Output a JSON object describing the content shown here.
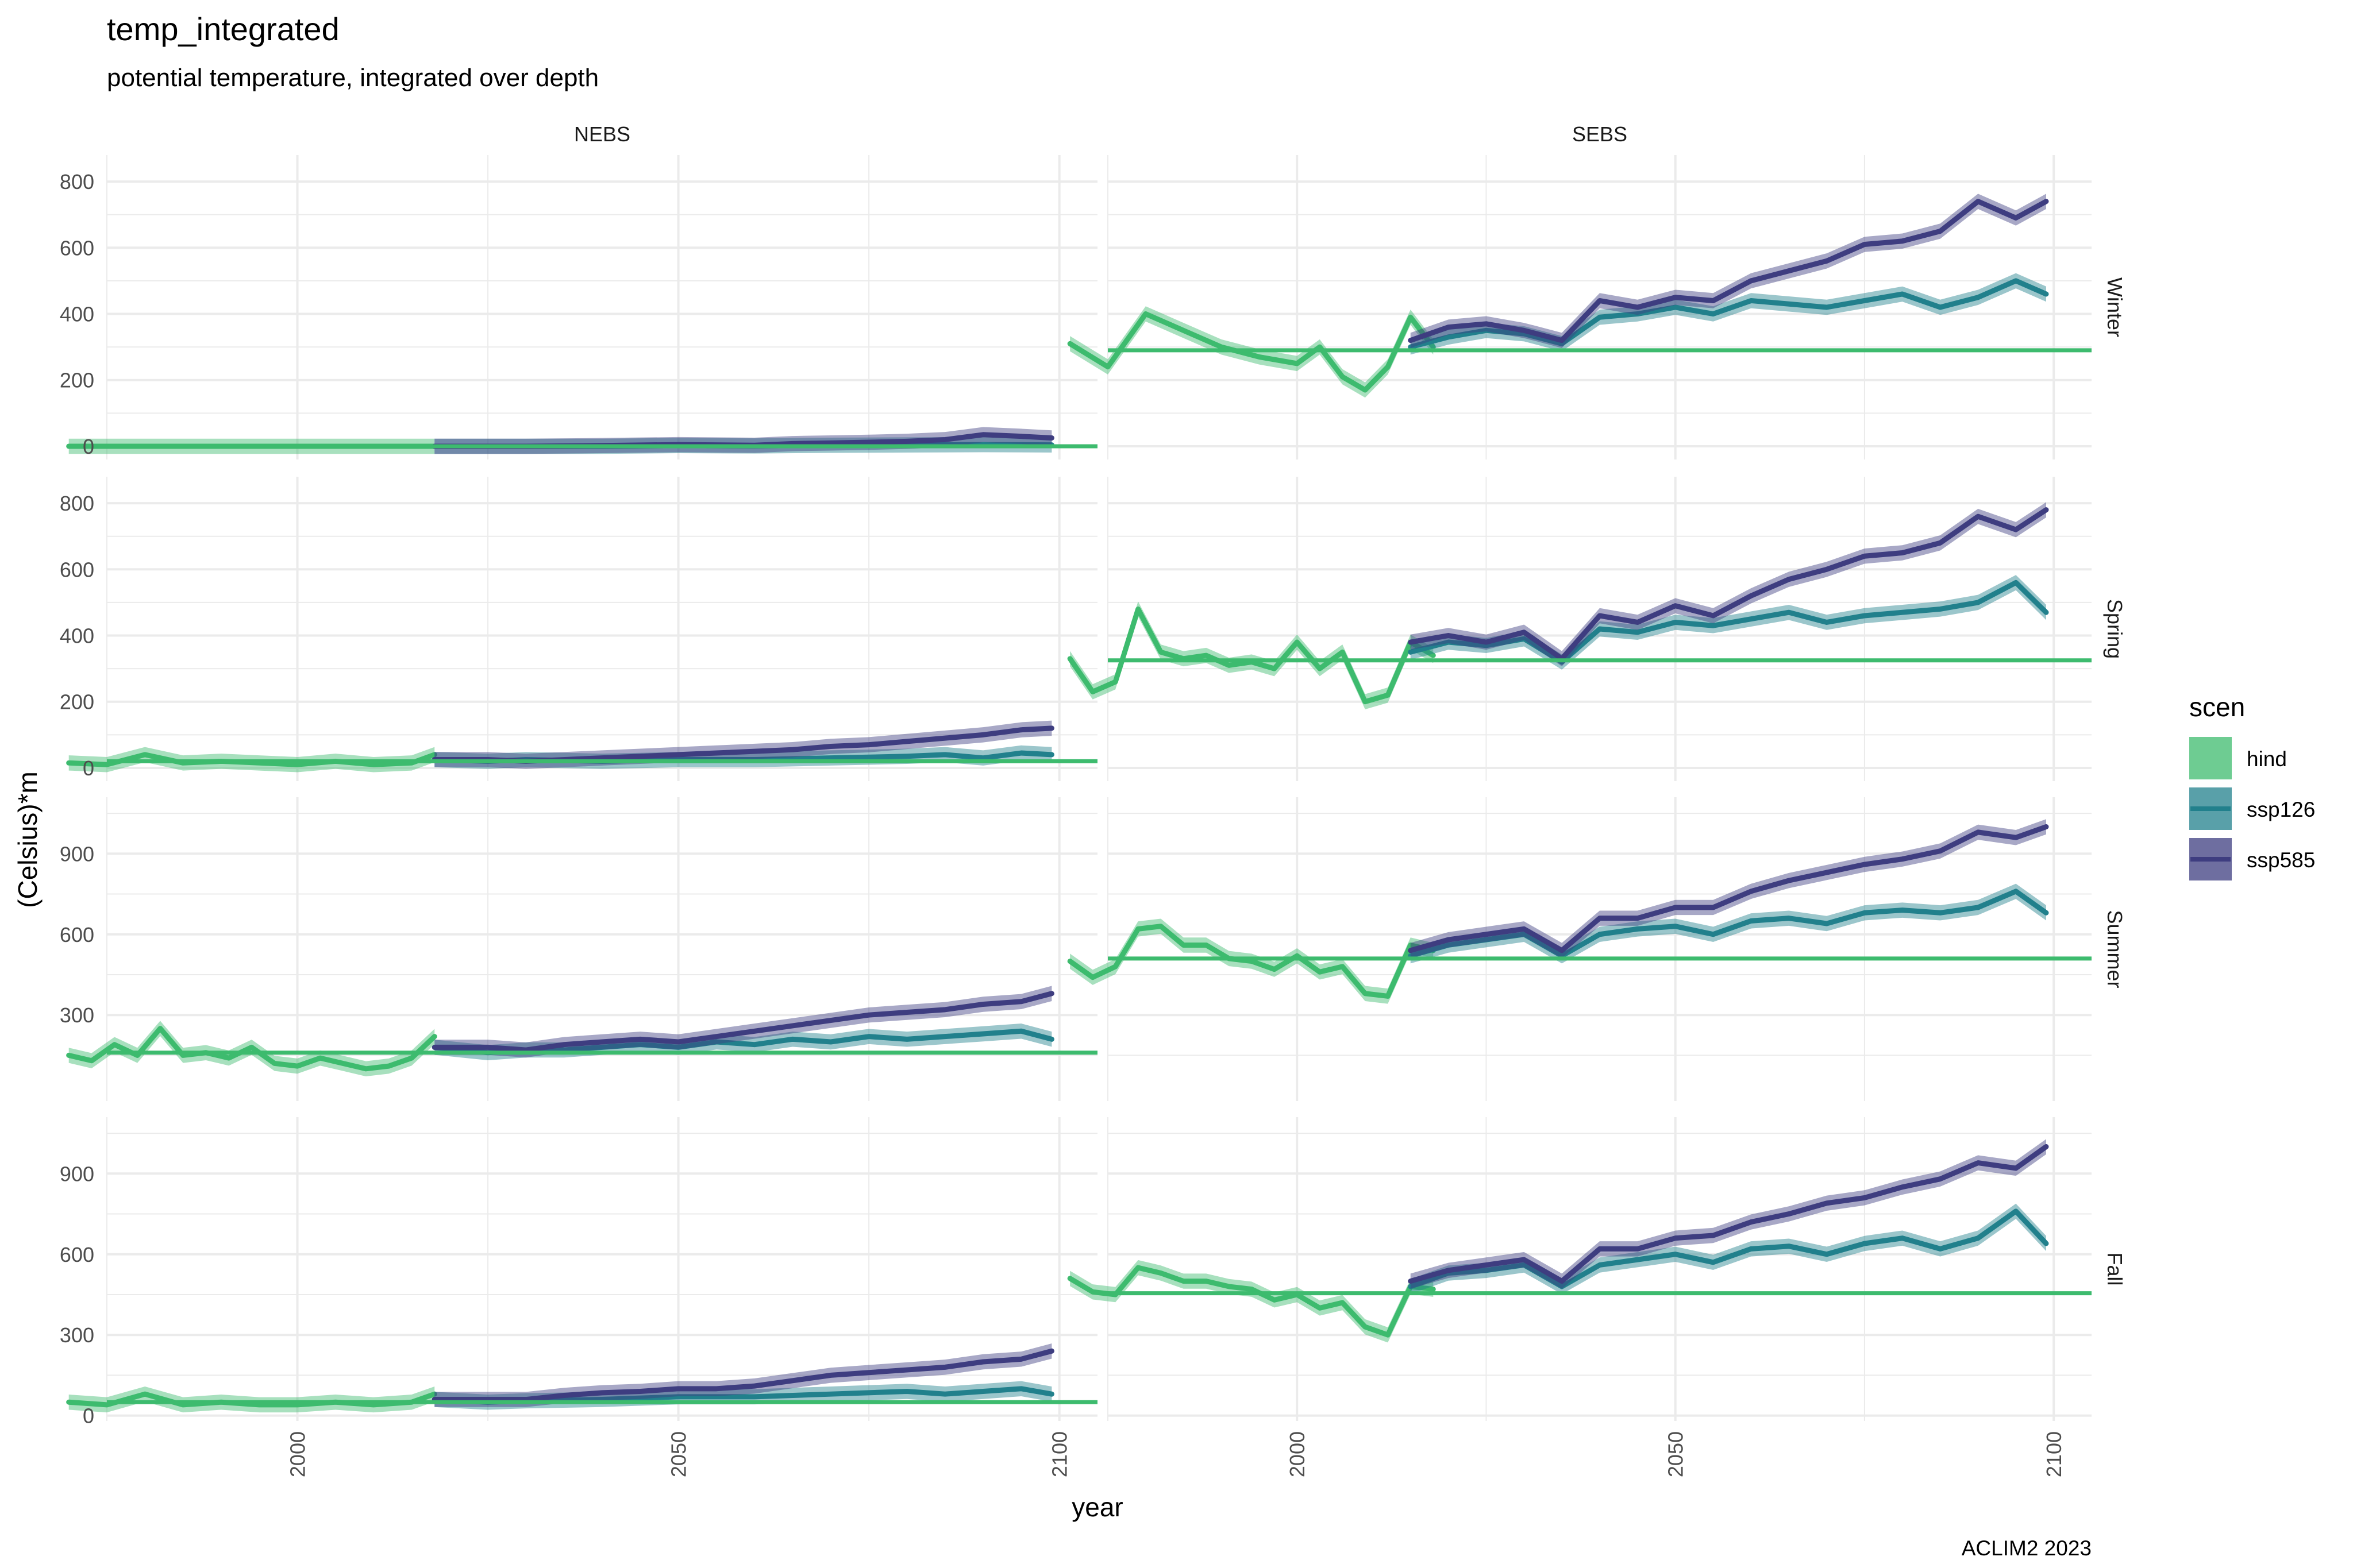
{
  "chart_data": {
    "type": "line",
    "title": "temp_integrated",
    "subtitle": "potential temperature, integrated over depth",
    "xlabel": "year",
    "ylabel": "(Celsius)*m",
    "caption": "ACLIM2 2023",
    "x_ticks": [
      "2000",
      "2050",
      "2100"
    ],
    "xlim": [
      1975,
      2105
    ],
    "columns": [
      "NEBS",
      "SEBS"
    ],
    "rows": [
      "Winter",
      "Spring",
      "Summer",
      "Fall"
    ],
    "legend": {
      "title": "scen",
      "position": "right",
      "entries": [
        "hind",
        "ssp126",
        "ssp585"
      ]
    },
    "colors": {
      "hind": "#3dbb6e",
      "ssp126": "#21808c",
      "ssp585": "#3e3d80",
      "grid": "#ebebeb"
    },
    "grid": true,
    "row_axes": [
      {
        "ylim": [
          -40,
          880
        ],
        "ticks": [
          0,
          200,
          400,
          600,
          800
        ],
        "tick_labels": [
          "0",
          "200",
          "400",
          "600",
          "800"
        ]
      },
      {
        "ylim": [
          -40,
          880
        ],
        "ticks": [
          0,
          200,
          400,
          600,
          800
        ],
        "tick_labels": [
          "0",
          "200",
          "400",
          "600",
          "800"
        ]
      },
      {
        "ylim": [
          -20,
          1110
        ],
        "ticks": [
          300,
          600,
          900
        ],
        "tick_labels": [
          "300",
          "600",
          "900"
        ]
      },
      {
        "ylim": [
          -20,
          1110
        ],
        "ticks": [
          0,
          300,
          600,
          900
        ],
        "tick_labels": [
          "0",
          "300",
          "600",
          "900"
        ]
      }
    ],
    "panels": [
      {
        "column": "NEBS",
        "row": "Winter",
        "baseline": 0,
        "hind": {
          "x": [
            1970,
            2018
          ],
          "y": [
            0,
            0
          ]
        },
        "ssp126": {
          "x": [
            2018,
            2030,
            2040,
            2050,
            2060,
            2070,
            2080,
            2090,
            2099
          ],
          "y": [
            0,
            0,
            0,
            2,
            1,
            3,
            4,
            5,
            4
          ]
        },
        "ssp585": {
          "x": [
            2018,
            2030,
            2040,
            2050,
            2060,
            2065,
            2070,
            2075,
            2080,
            2085,
            2090,
            2095,
            2099
          ],
          "y": [
            0,
            0,
            2,
            5,
            3,
            8,
            10,
            12,
            15,
            20,
            35,
            30,
            25
          ]
        }
      },
      {
        "column": "SEBS",
        "row": "Winter",
        "baseline": 290,
        "hind": {
          "x": [
            1970,
            1975,
            1980,
            1985,
            1990,
            1995,
            2000,
            2003,
            2006,
            2009,
            2012,
            2015,
            2018
          ],
          "y": [
            310,
            240,
            400,
            350,
            300,
            270,
            250,
            300,
            210,
            170,
            240,
            390,
            300
          ]
        },
        "ssp126": {
          "x": [
            2015,
            2020,
            2025,
            2030,
            2035,
            2040,
            2045,
            2050,
            2055,
            2060,
            2065,
            2070,
            2075,
            2080,
            2085,
            2090,
            2095,
            2099
          ],
          "y": [
            300,
            330,
            350,
            340,
            310,
            390,
            400,
            420,
            400,
            440,
            430,
            420,
            440,
            460,
            420,
            450,
            500,
            460
          ]
        },
        "ssp585": {
          "x": [
            2015,
            2020,
            2025,
            2030,
            2035,
            2040,
            2045,
            2050,
            2055,
            2060,
            2065,
            2070,
            2075,
            2080,
            2085,
            2090,
            2095,
            2099
          ],
          "y": [
            320,
            360,
            370,
            350,
            320,
            440,
            420,
            450,
            440,
            500,
            530,
            560,
            610,
            620,
            650,
            740,
            690,
            740
          ]
        }
      },
      {
        "column": "NEBS",
        "row": "Spring",
        "baseline": 20,
        "hind": {
          "x": [
            1970,
            1975,
            1980,
            1985,
            1990,
            1995,
            2000,
            2005,
            2010,
            2015,
            2018
          ],
          "y": [
            15,
            10,
            40,
            15,
            20,
            15,
            10,
            20,
            10,
            15,
            40
          ]
        },
        "ssp126": {
          "x": [
            2018,
            2025,
            2030,
            2040,
            2050,
            2060,
            2070,
            2080,
            2085,
            2090,
            2095,
            2099
          ],
          "y": [
            25,
            20,
            25,
            20,
            25,
            25,
            30,
            35,
            40,
            30,
            45,
            40
          ]
        },
        "ssp585": {
          "x": [
            2018,
            2025,
            2030,
            2040,
            2050,
            2055,
            2060,
            2065,
            2070,
            2075,
            2080,
            2085,
            2090,
            2095,
            2099
          ],
          "y": [
            25,
            25,
            20,
            30,
            40,
            45,
            50,
            55,
            65,
            70,
            80,
            90,
            100,
            115,
            120
          ]
        }
      },
      {
        "column": "SEBS",
        "row": "Spring",
        "baseline": 325,
        "hind": {
          "x": [
            1970,
            1973,
            1976,
            1979,
            1982,
            1985,
            1988,
            1991,
            1994,
            1997,
            2000,
            2003,
            2006,
            2009,
            2012,
            2015,
            2018
          ],
          "y": [
            330,
            230,
            260,
            480,
            350,
            330,
            340,
            310,
            320,
            300,
            380,
            300,
            350,
            200,
            220,
            380,
            340
          ]
        },
        "ssp126": {
          "x": [
            2015,
            2020,
            2025,
            2030,
            2035,
            2040,
            2045,
            2050,
            2055,
            2060,
            2065,
            2070,
            2075,
            2080,
            2085,
            2090,
            2095,
            2099
          ],
          "y": [
            350,
            380,
            370,
            390,
            320,
            420,
            410,
            440,
            430,
            450,
            470,
            440,
            460,
            470,
            480,
            500,
            560,
            470
          ]
        },
        "ssp585": {
          "x": [
            2015,
            2020,
            2025,
            2030,
            2035,
            2040,
            2045,
            2050,
            2055,
            2060,
            2065,
            2070,
            2075,
            2080,
            2085,
            2090,
            2095,
            2099
          ],
          "y": [
            380,
            400,
            380,
            410,
            330,
            460,
            440,
            490,
            460,
            520,
            570,
            600,
            640,
            650,
            680,
            760,
            720,
            780
          ]
        }
      },
      {
        "column": "NEBS",
        "row": "Summer",
        "baseline": 160,
        "hind": {
          "x": [
            1970,
            1973,
            1976,
            1979,
            1982,
            1985,
            1988,
            1991,
            1994,
            1997,
            2000,
            2003,
            2006,
            2009,
            2012,
            2015,
            2018
          ],
          "y": [
            150,
            130,
            190,
            150,
            250,
            150,
            160,
            140,
            180,
            120,
            110,
            140,
            120,
            100,
            110,
            140,
            220
          ]
        },
        "ssp126": {
          "x": [
            2018,
            2025,
            2030,
            2035,
            2040,
            2045,
            2050,
            2055,
            2060,
            2065,
            2070,
            2075,
            2080,
            2085,
            2090,
            2095,
            2099
          ],
          "y": [
            180,
            160,
            170,
            170,
            180,
            190,
            180,
            200,
            190,
            210,
            200,
            220,
            210,
            220,
            230,
            240,
            210
          ]
        },
        "ssp585": {
          "x": [
            2018,
            2025,
            2030,
            2035,
            2040,
            2045,
            2050,
            2055,
            2060,
            2065,
            2070,
            2075,
            2080,
            2085,
            2090,
            2095,
            2099
          ],
          "y": [
            180,
            180,
            170,
            190,
            200,
            210,
            200,
            220,
            240,
            260,
            280,
            300,
            310,
            320,
            340,
            350,
            380
          ]
        }
      },
      {
        "column": "SEBS",
        "row": "Summer",
        "baseline": 510,
        "hind": {
          "x": [
            1970,
            1973,
            1976,
            1979,
            1982,
            1985,
            1988,
            1991,
            1994,
            1997,
            2000,
            2003,
            2006,
            2009,
            2012,
            2015,
            2018
          ],
          "y": [
            500,
            440,
            480,
            620,
            630,
            560,
            560,
            510,
            500,
            470,
            520,
            460,
            480,
            380,
            370,
            560,
            540
          ]
        },
        "ssp126": {
          "x": [
            2015,
            2020,
            2025,
            2030,
            2035,
            2040,
            2045,
            2050,
            2055,
            2060,
            2065,
            2070,
            2075,
            2080,
            2085,
            2090,
            2095,
            2099
          ],
          "y": [
            520,
            560,
            580,
            600,
            520,
            600,
            620,
            630,
            600,
            650,
            660,
            640,
            680,
            690,
            680,
            700,
            760,
            680
          ]
        },
        "ssp585": {
          "x": [
            2015,
            2020,
            2025,
            2030,
            2035,
            2040,
            2045,
            2050,
            2055,
            2060,
            2065,
            2070,
            2075,
            2080,
            2085,
            2090,
            2095,
            2099
          ],
          "y": [
            540,
            580,
            600,
            620,
            540,
            660,
            660,
            700,
            700,
            760,
            800,
            830,
            860,
            880,
            910,
            980,
            960,
            1000
          ]
        }
      },
      {
        "column": "NEBS",
        "row": "Fall",
        "baseline": 50,
        "hind": {
          "x": [
            1970,
            1975,
            1980,
            1985,
            1990,
            1995,
            2000,
            2005,
            2010,
            2015,
            2018
          ],
          "y": [
            50,
            40,
            80,
            40,
            50,
            40,
            40,
            50,
            40,
            50,
            80
          ]
        },
        "ssp126": {
          "x": [
            2018,
            2025,
            2030,
            2040,
            2050,
            2060,
            2070,
            2080,
            2085,
            2090,
            2095,
            2099
          ],
          "y": [
            60,
            50,
            55,
            60,
            70,
            70,
            80,
            90,
            80,
            90,
            100,
            80
          ]
        },
        "ssp585": {
          "x": [
            2018,
            2025,
            2030,
            2035,
            2040,
            2045,
            2050,
            2055,
            2060,
            2065,
            2070,
            2075,
            2080,
            2085,
            2090,
            2095,
            2099
          ],
          "y": [
            60,
            60,
            60,
            75,
            85,
            90,
            100,
            100,
            110,
            130,
            150,
            160,
            170,
            180,
            200,
            210,
            240
          ]
        }
      },
      {
        "column": "SEBS",
        "row": "Fall",
        "baseline": 455,
        "hind": {
          "x": [
            1970,
            1973,
            1976,
            1979,
            1982,
            1985,
            1988,
            1991,
            1994,
            1997,
            2000,
            2003,
            2006,
            2009,
            2012,
            2015,
            2018
          ],
          "y": [
            510,
            460,
            450,
            550,
            530,
            500,
            500,
            480,
            470,
            430,
            450,
            400,
            420,
            330,
            300,
            480,
            470
          ]
        },
        "ssp126": {
          "x": [
            2015,
            2020,
            2025,
            2030,
            2035,
            2040,
            2045,
            2050,
            2055,
            2060,
            2065,
            2070,
            2075,
            2080,
            2085,
            2090,
            2095,
            2099
          ],
          "y": [
            480,
            530,
            540,
            560,
            480,
            560,
            580,
            600,
            570,
            620,
            630,
            600,
            640,
            660,
            620,
            660,
            760,
            640
          ]
        },
        "ssp585": {
          "x": [
            2015,
            2020,
            2025,
            2030,
            2035,
            2040,
            2045,
            2050,
            2055,
            2060,
            2065,
            2070,
            2075,
            2080,
            2085,
            2090,
            2095,
            2099
          ],
          "y": [
            500,
            540,
            560,
            580,
            500,
            620,
            620,
            660,
            670,
            720,
            750,
            790,
            810,
            850,
            880,
            940,
            920,
            1000
          ]
        }
      }
    ]
  }
}
